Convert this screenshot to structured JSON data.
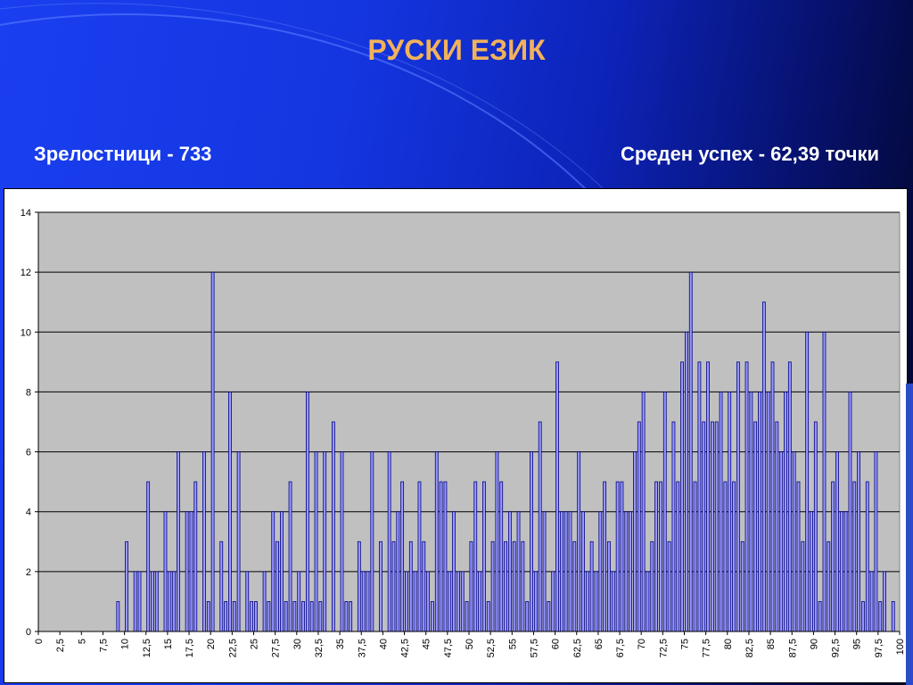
{
  "title": "РУСКИ ЕЗИК",
  "stats": {
    "graduates": "Зрелостници - 733",
    "average": "Среден успех - 62,39 точки"
  },
  "colors": {
    "bar_fill": "#9999ff",
    "bar_stroke": "#000080",
    "plot_bg": "#c0c0c0",
    "title": "#f2b25c"
  },
  "chart_data": {
    "type": "bar",
    "title": "",
    "xlabel": "",
    "ylabel": "",
    "ylim": [
      0,
      14
    ],
    "yticks": [
      0,
      2,
      4,
      6,
      8,
      10,
      12,
      14
    ],
    "grid": true,
    "legend": "none",
    "xtick_labels": [
      "0",
      "2,5",
      "5",
      "7,5",
      "10",
      "12,5",
      "15",
      "17,5",
      "20",
      "22,5",
      "25",
      "27,5",
      "30",
      "32,5",
      "35",
      "37,5",
      "40",
      "42,5",
      "45",
      "47,5",
      "50",
      "52,5",
      "55",
      "57,5",
      "60",
      "62,5",
      "65",
      "67,5",
      "70",
      "72,5",
      "75",
      "77,5",
      "80",
      "82,5",
      "85",
      "87,5",
      "90",
      "92,5",
      "95",
      "97,5",
      "100"
    ],
    "x_step": 0.5,
    "values": [
      0,
      0,
      0,
      0,
      0,
      0,
      0,
      0,
      0,
      0,
      0,
      0,
      0,
      0,
      0,
      0,
      0,
      0,
      1,
      0,
      3,
      0,
      2,
      2,
      0,
      5,
      2,
      2,
      0,
      4,
      2,
      2,
      6,
      0,
      4,
      4,
      5,
      0,
      6,
      1,
      12,
      0,
      3,
      1,
      8,
      1,
      6,
      0,
      2,
      1,
      1,
      0,
      2,
      1,
      4,
      3,
      4,
      1,
      5,
      1,
      2,
      1,
      8,
      1,
      6,
      1,
      6,
      0,
      7,
      0,
      6,
      1,
      1,
      0,
      3,
      2,
      2,
      6,
      0,
      3,
      0,
      6,
      3,
      4,
      5,
      2,
      3,
      2,
      5,
      3,
      2,
      1,
      6,
      5,
      5,
      2,
      4,
      2,
      2,
      1,
      3,
      5,
      2,
      5,
      1,
      3,
      6,
      5,
      3,
      4,
      3,
      4,
      3,
      1,
      6,
      2,
      7,
      4,
      1,
      2,
      9,
      4,
      4,
      4,
      3,
      6,
      4,
      2,
      3,
      2,
      4,
      5,
      3,
      2,
      5,
      5,
      4,
      4,
      6,
      7,
      8,
      2,
      3,
      5,
      5,
      8,
      3,
      7,
      5,
      9,
      10,
      12,
      5,
      9,
      7,
      9,
      7,
      7,
      8,
      5,
      8,
      5,
      9,
      3,
      9,
      8,
      7,
      8,
      11,
      8,
      9,
      7,
      6,
      8,
      9,
      6,
      5,
      3,
      10,
      4,
      7,
      1,
      10,
      3,
      5,
      6,
      4,
      4,
      8,
      5,
      6,
      1,
      5,
      2,
      6,
      1,
      2,
      0,
      1,
      0
    ]
  }
}
